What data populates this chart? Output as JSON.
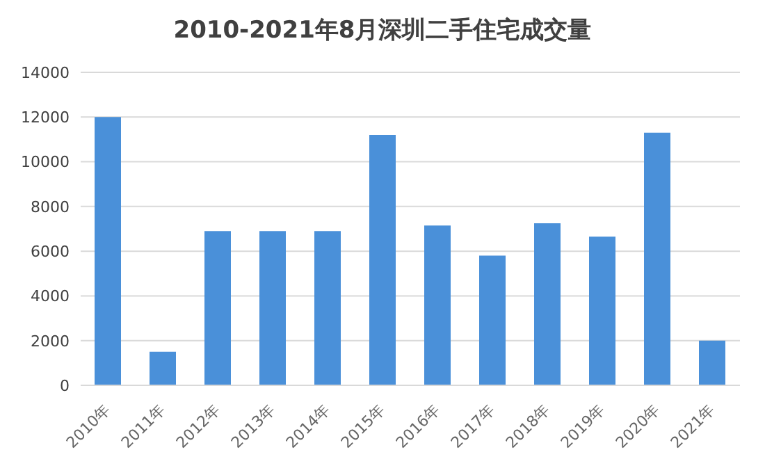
{
  "chart_data": {
    "type": "bar",
    "title": "2010-2021年8月深圳二手住宅成交量",
    "categories": [
      "2010年",
      "2011年",
      "2012年",
      "2013年",
      "2014年",
      "2015年",
      "2016年",
      "2017年",
      "2018年",
      "2019年",
      "2020年",
      "2021年"
    ],
    "values": [
      12000,
      1500,
      6900,
      6900,
      6900,
      11200,
      7150,
      5800,
      7250,
      6650,
      11300,
      2000
    ],
    "color": "#4a90d9",
    "ylim": [
      0,
      14000
    ],
    "yticks": [
      0,
      2000,
      4000,
      6000,
      8000,
      10000,
      12000,
      14000
    ],
    "grid": "y"
  }
}
